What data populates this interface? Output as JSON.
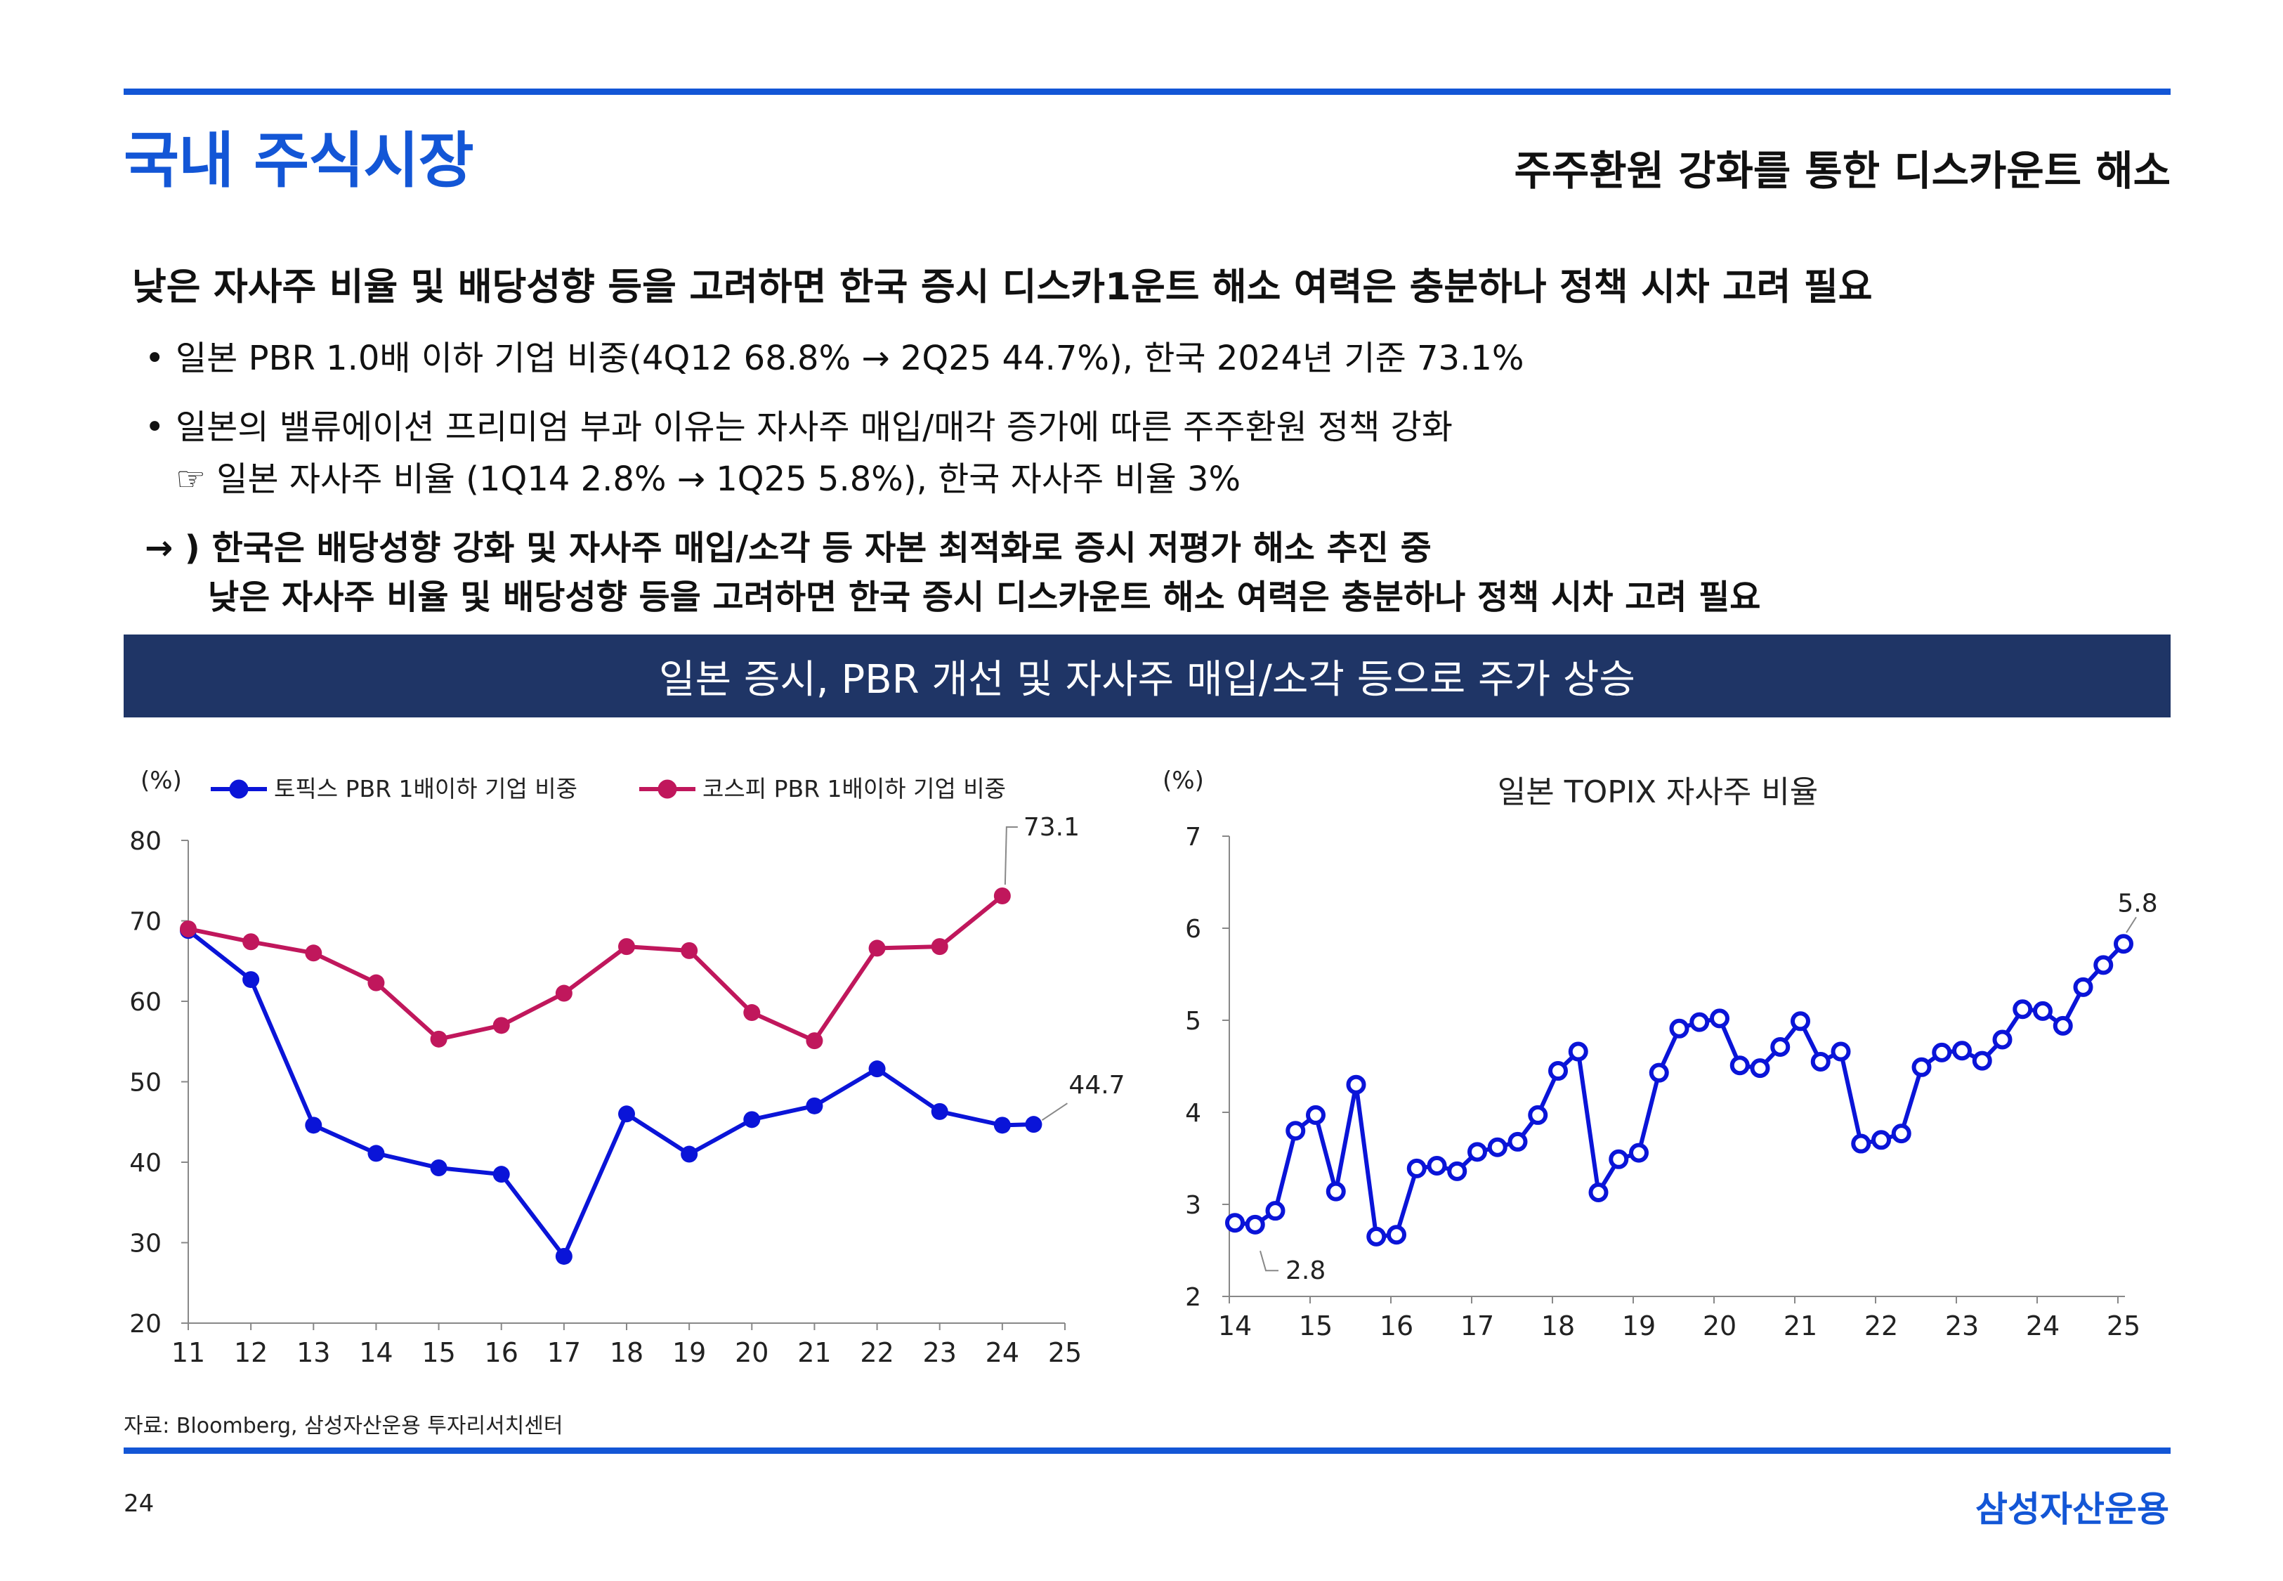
{
  "header": {
    "section_title": "국내 주식시장",
    "subtitle": "주주환원 강화를 통한 디스카운트 해소"
  },
  "content": {
    "headline": "낮은 자사주 비율 및 배당성향 등을 고려하면 한국 증시 디스카1운트 해소 여력은 충분하나 정책 시차 고려 필요",
    "bullet_mark": "•",
    "bullet1": "일본 PBR 1.0배 이하 기업 비중(4Q12 68.8% → 2Q25 44.7%), 한국 2024년 기준 73.1%",
    "bullet2": "일본의 밸류에이션 프리미엄 부과 이유는 자사주 매입/매각 증가에 따른 주주환원 정책 강화",
    "bullet2_sub": "☞ 일본 자사주 비율 (1Q14 2.8% → 1Q25 5.8%), 한국 자사주 비율 3%",
    "conclusion_line1": "→ ) 한국은 배당성향 강화 및 자사주 매입/소각 등 자본 최적화로 증시 저평가 해소 추진 중",
    "conclusion_line2": "낮은 자사주 비율 및 배당성향 등을 고려하면 한국 증시 디스카운트 해소 여력은 충분하나 정책 시차 고려 필요"
  },
  "banner": "일본 증시, PBR 개선 및 자사주 매입/소각 등으로 주가 상승",
  "colors": {
    "accent": "#1356d6",
    "banner_bg": "#1f3566",
    "topix_series": "#0a14d8",
    "kospi_series": "#c0175c"
  },
  "chart_data": [
    {
      "type": "line",
      "title": "",
      "ylabel": "(%)",
      "ylim": [
        20,
        80
      ],
      "yticks": [
        20,
        30,
        40,
        50,
        60,
        70,
        80
      ],
      "x_tick_labels": [
        "11",
        "12",
        "13",
        "14",
        "15",
        "16",
        "17",
        "18",
        "19",
        "20",
        "21",
        "22",
        "23",
        "24",
        "25"
      ],
      "x_tick_years": [
        2011,
        2012,
        2013,
        2014,
        2015,
        2016,
        2017,
        2018,
        2019,
        2020,
        2021,
        2022,
        2023,
        2024,
        2025
      ],
      "legend_position": "top",
      "series": [
        {
          "name": "토픽스 PBR 1배이하 기업 비중",
          "x": [
            2011,
            2012,
            2013,
            2014,
            2015,
            2016,
            2017,
            2018,
            2019,
            2020,
            2021,
            2022,
            2023,
            2024,
            2024.5
          ],
          "values": [
            68.8,
            62.7,
            44.6,
            41.1,
            39.3,
            38.5,
            28.3,
            46.0,
            41.0,
            45.3,
            47.0,
            51.6,
            46.3,
            44.6,
            44.7
          ],
          "end_label": "44.7"
        },
        {
          "name": "코스피 PBR 1배이하 기업 비중",
          "x": [
            2011,
            2012,
            2013,
            2014,
            2015,
            2016,
            2017,
            2018,
            2019,
            2020,
            2021,
            2022,
            2023,
            2024
          ],
          "values": [
            69.0,
            67.4,
            66.0,
            62.3,
            55.3,
            57.0,
            61.0,
            66.8,
            66.3,
            58.6,
            55.1,
            66.6,
            66.8,
            73.1
          ],
          "end_label": "73.1"
        }
      ]
    },
    {
      "type": "line",
      "title": "일본 TOPIX 자사주 비율",
      "ylabel": "(%)",
      "ylim": [
        2,
        7
      ],
      "yticks": [
        2,
        3,
        4,
        5,
        6,
        7
      ],
      "x_tick_labels": [
        "14",
        "15",
        "16",
        "17",
        "18",
        "19",
        "20",
        "21",
        "22",
        "23",
        "24",
        "25"
      ],
      "x_tick_years": [
        2014,
        2015,
        2016,
        2017,
        2018,
        2019,
        2020,
        2021,
        2022,
        2023,
        2024,
        2025
      ],
      "series": [
        {
          "name": "",
          "x_start": "1Q14",
          "frequency": "quarterly",
          "values": [
            2.8,
            2.78,
            2.93,
            3.8,
            3.97,
            3.14,
            4.3,
            2.65,
            2.67,
            3.39,
            3.42,
            3.36,
            3.57,
            3.62,
            3.68,
            3.97,
            4.45,
            4.66,
            3.13,
            3.49,
            3.56,
            4.43,
            4.91,
            4.98,
            5.02,
            4.51,
            4.48,
            4.71,
            4.99,
            4.55,
            4.66,
            3.66,
            3.7,
            3.77,
            4.49,
            4.65,
            4.67,
            4.56,
            4.79,
            5.12,
            5.1,
            4.94,
            5.36,
            5.6,
            5.83
          ],
          "start_label": "2.8",
          "end_label": "5.8"
        }
      ]
    }
  ],
  "footer": {
    "source": "자료: Bloomberg, 삼성자산운용 투자리서치센터",
    "page_number": "24",
    "logo_text": "삼성자산운용"
  }
}
